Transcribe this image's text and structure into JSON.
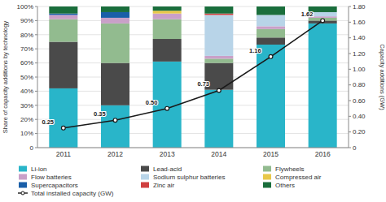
{
  "chart_data": {
    "type": "bar",
    "stacked": true,
    "grid": true,
    "legend": "bottom",
    "ylabel": "Share of capacity additions by technology",
    "y2label": "Capacity additions (GW)",
    "categories": [
      "2011",
      "2012",
      "2013",
      "2014",
      "2015",
      "2016"
    ],
    "ylim": [
      0,
      100
    ],
    "yticks": [
      0,
      {
        "value": 10,
        "label": "10%"
      },
      {
        "value": 20,
        "label": "20%"
      },
      {
        "value": 30,
        "label": "30%"
      },
      {
        "value": 40,
        "label": "40%"
      },
      {
        "value": 50,
        "label": "50%"
      },
      {
        "value": 60,
        "label": "60%"
      },
      {
        "value": 70,
        "label": "70%"
      },
      {
        "value": 80,
        "label": "80%"
      },
      {
        "value": 90,
        "label": "90%"
      },
      {
        "value": 100,
        "label": "100%"
      }
    ],
    "y2lim": [
      0,
      1.8
    ],
    "y2ticks": [
      0,
      {
        "value": 0.2,
        "label": "0.20"
      },
      {
        "value": 0.4,
        "label": "0.40"
      },
      {
        "value": 0.6,
        "label": "0.60"
      },
      {
        "value": 0.8,
        "label": "0.80"
      },
      {
        "value": 1.0,
        "label": "1.00"
      },
      {
        "value": 1.2,
        "label": "1.20"
      },
      {
        "value": 1.4,
        "label": "1.40"
      },
      {
        "value": 1.6,
        "label": "1.60"
      },
      {
        "value": 1.8,
        "label": "1.80"
      }
    ],
    "series": [
      {
        "name": "Li-ion",
        "color": "#29b5c9",
        "values": [
          42,
          30,
          61,
          41,
          73,
          88
        ]
      },
      {
        "name": "Lead-acid",
        "color": "#4a4a4a",
        "values": [
          33,
          30,
          16,
          19,
          5,
          2
        ]
      },
      {
        "name": "Flywheels",
        "color": "#92bb8f",
        "values": [
          16,
          28,
          14,
          3,
          6,
          2
        ]
      },
      {
        "name": "Flow batteries",
        "color": "#c9a0c8",
        "values": [
          3,
          4,
          4,
          2,
          2,
          1
        ]
      },
      {
        "name": "Sodium sulphur batteries",
        "color": "#b8d4e8",
        "values": [
          0,
          0,
          0,
          29,
          8,
          3
        ]
      },
      {
        "name": "Compressed air",
        "color": "#e8c84a",
        "values": [
          0,
          0,
          2,
          0,
          0,
          0
        ]
      },
      {
        "name": "Supercapacitors",
        "color": "#1a5fa8",
        "values": [
          1,
          4,
          0,
          0,
          0,
          0
        ]
      },
      {
        "name": "Zinc air",
        "color": "#d04040",
        "values": [
          0,
          0,
          0,
          1,
          0,
          0
        ]
      },
      {
        "name": "Others",
        "color": "#1a6e3c",
        "values": [
          5,
          4,
          3,
          5,
          6,
          4
        ]
      },
      {
        "name": "Total installed capacity (GW)",
        "type": "line",
        "axis": "y2",
        "color": "#1a1a1a",
        "marker": "circle",
        "data_labels": true,
        "values": [
          0.25,
          0.35,
          0.5,
          0.73,
          1.16,
          1.62
        ],
        "value_labels": [
          "0.25",
          "0.35",
          "0.50",
          "0.73",
          "1.16",
          "1.62"
        ]
      }
    ]
  }
}
